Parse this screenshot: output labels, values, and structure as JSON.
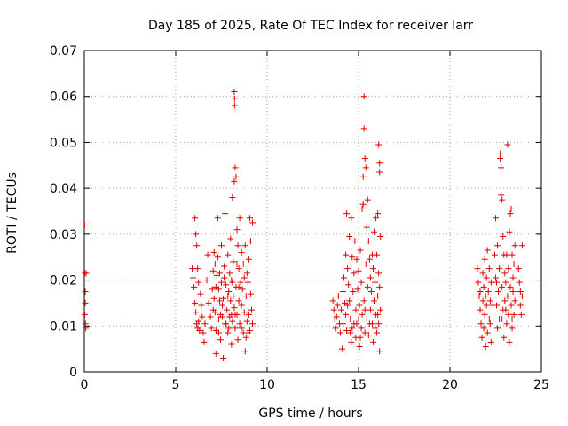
{
  "chart_data": {
    "type": "scatter",
    "title": "Day 185 of 2025, Rate Of TEC Index for receiver larr",
    "xlabel": "GPS time / hours",
    "ylabel": "ROTI / TECUs",
    "xlim": [
      0,
      25
    ],
    "ylim": [
      0,
      0.07
    ],
    "xticks": [
      0,
      5,
      10,
      15,
      20,
      25
    ],
    "xtick_labels": [
      "0",
      "5",
      "10",
      "15",
      "20",
      "25"
    ],
    "yticks": [
      0,
      0.01,
      0.02,
      0.03,
      0.04,
      0.05,
      0.06,
      0.07
    ],
    "ytick_labels": [
      "0",
      "0.01",
      "0.02",
      "0.03",
      "0.04",
      "0.05",
      "0.06",
      "0.07"
    ],
    "grid": true,
    "marker": "+",
    "marker_color": "#e00000",
    "series": [
      {
        "points": [
          [
            0.02,
            0.032
          ],
          [
            0.03,
            0.0215
          ],
          [
            0.05,
            0.0175
          ],
          [
            0.05,
            0.015
          ],
          [
            0.06,
            0.0105
          ],
          [
            0.08,
            0.0095
          ],
          [
            0.1,
            0.0215
          ],
          [
            0.03,
            0.0125
          ],
          [
            5.9,
            0.0225
          ],
          [
            5.95,
            0.0205
          ],
          [
            6.0,
            0.0185
          ],
          [
            6.05,
            0.015
          ],
          [
            6.1,
            0.013
          ],
          [
            6.15,
            0.0105
          ],
          [
            6.2,
            0.0095
          ],
          [
            6.25,
            0.011
          ],
          [
            6.3,
            0.009
          ],
          [
            6.05,
            0.0335
          ],
          [
            6.1,
            0.03
          ],
          [
            6.15,
            0.0275
          ],
          [
            6.2,
            0.0225
          ],
          [
            6.25,
            0.0195
          ],
          [
            6.35,
            0.017
          ],
          [
            6.4,
            0.0145
          ],
          [
            6.45,
            0.012
          ],
          [
            6.5,
            0.0085
          ],
          [
            6.55,
            0.0065
          ],
          [
            6.6,
            0.0105
          ],
          [
            6.7,
            0.02
          ],
          [
            6.75,
            0.0255
          ],
          [
            6.8,
            0.015
          ],
          [
            6.9,
            0.012
          ],
          [
            6.95,
            0.0095
          ],
          [
            7.0,
            0.018
          ],
          [
            7.05,
            0.022
          ],
          [
            7.1,
            0.026
          ],
          [
            7.1,
            0.016
          ],
          [
            7.15,
            0.013
          ],
          [
            7.2,
            0.009
          ],
          [
            7.2,
            0.004
          ],
          [
            7.25,
            0.021
          ],
          [
            7.3,
            0.025
          ],
          [
            7.3,
            0.0335
          ],
          [
            7.35,
            0.018
          ],
          [
            7.35,
            0.0115
          ],
          [
            7.4,
            0.0155
          ],
          [
            7.45,
            0.007
          ],
          [
            7.5,
            0.0275
          ],
          [
            7.5,
            0.0195
          ],
          [
            7.55,
            0.012
          ],
          [
            7.6,
            0.003
          ],
          [
            7.6,
            0.016
          ],
          [
            7.65,
            0.023
          ],
          [
            7.7,
            0.0345
          ],
          [
            7.7,
            0.0105
          ],
          [
            7.75,
            0.019
          ],
          [
            7.8,
            0.0135
          ],
          [
            7.85,
            0.0255
          ],
          [
            7.85,
            0.0085
          ],
          [
            7.9,
            0.0175
          ],
          [
            7.95,
            0.0215
          ],
          [
            7.95,
            0.012
          ],
          [
            8.0,
            0.029
          ],
          [
            8.0,
            0.0155
          ],
          [
            8.05,
            0.006
          ],
          [
            8.05,
            0.02
          ],
          [
            8.1,
            0.038
          ],
          [
            8.1,
            0.011
          ],
          [
            8.15,
            0.024
          ],
          [
            8.15,
            0.0165
          ],
          [
            8.2,
            0.0415
          ],
          [
            8.2,
            0.014
          ],
          [
            8.2,
            0.061
          ],
          [
            8.22,
            0.0595
          ],
          [
            8.22,
            0.058
          ],
          [
            8.25,
            0.0445
          ],
          [
            8.25,
            0.0095
          ],
          [
            8.3,
            0.0425
          ],
          [
            8.3,
            0.0185
          ],
          [
            8.35,
            0.031
          ],
          [
            8.35,
            0.0125
          ],
          [
            8.4,
            0.0275
          ],
          [
            8.4,
            0.007
          ],
          [
            8.45,
            0.0225
          ],
          [
            8.45,
            0.0155
          ],
          [
            8.5,
            0.0335
          ],
          [
            8.5,
            0.0105
          ],
          [
            8.55,
            0.0195
          ],
          [
            8.6,
            0.026
          ],
          [
            8.6,
            0.0145
          ],
          [
            8.65,
            0.018
          ],
          [
            8.7,
            0.0085
          ],
          [
            8.7,
            0.0235
          ],
          [
            8.75,
            0.013
          ],
          [
            8.8,
            0.0275
          ],
          [
            8.8,
            0.0045
          ],
          [
            8.85,
            0.0165
          ],
          [
            8.9,
            0.011
          ],
          [
            8.9,
            0.0215
          ],
          [
            8.95,
            0.0195
          ],
          [
            9.0,
            0.0245
          ],
          [
            9.0,
            0.0125
          ],
          [
            9.05,
            0.0335
          ],
          [
            9.05,
            0.009
          ],
          [
            9.1,
            0.017
          ],
          [
            9.1,
            0.0285
          ],
          [
            9.15,
            0.0135
          ],
          [
            9.2,
            0.0105
          ],
          [
            9.2,
            0.0325
          ],
          [
            7.05,
            0.0135
          ],
          [
            7.2,
            0.0185
          ],
          [
            7.4,
            0.0215
          ],
          [
            7.55,
            0.0145
          ],
          [
            7.75,
            0.0105
          ],
          [
            7.9,
            0.0095
          ],
          [
            8.1,
            0.0195
          ],
          [
            8.25,
            0.0125
          ],
          [
            8.45,
            0.0185
          ],
          [
            8.6,
            0.0095
          ],
          [
            8.75,
            0.0205
          ],
          [
            8.95,
            0.0085
          ],
          [
            7.15,
            0.0235
          ],
          [
            7.35,
            0.0085
          ],
          [
            7.65,
            0.0205
          ],
          [
            8.35,
            0.0235
          ],
          [
            8.85,
            0.0075
          ],
          [
            7.45,
            0.0125
          ],
          [
            7.85,
            0.0165
          ],
          [
            8.05,
            0.0125
          ],
          [
            13.6,
            0.0155
          ],
          [
            13.65,
            0.0135
          ],
          [
            13.7,
            0.0115
          ],
          [
            13.75,
            0.0095
          ],
          [
            13.8,
            0.012
          ],
          [
            13.85,
            0.0145
          ],
          [
            13.9,
            0.0165
          ],
          [
            13.95,
            0.0105
          ],
          [
            14.0,
            0.0085
          ],
          [
            14.05,
            0.0135
          ],
          [
            14.1,
            0.005
          ],
          [
            14.15,
            0.0175
          ],
          [
            14.2,
            0.0205
          ],
          [
            14.25,
            0.015
          ],
          [
            14.3,
            0.0255
          ],
          [
            14.3,
            0.0125
          ],
          [
            14.35,
            0.0345
          ],
          [
            14.35,
            0.009
          ],
          [
            14.4,
            0.0225
          ],
          [
            14.45,
            0.019
          ],
          [
            14.5,
            0.0295
          ],
          [
            14.5,
            0.0155
          ],
          [
            14.55,
            0.0115
          ],
          [
            14.6,
            0.0335
          ],
          [
            14.6,
            0.0065
          ],
          [
            14.65,
            0.025
          ],
          [
            14.7,
            0.0175
          ],
          [
            14.75,
            0.0215
          ],
          [
            14.75,
            0.0105
          ],
          [
            14.8,
            0.0285
          ],
          [
            14.85,
            0.0135
          ],
          [
            14.85,
            0.0075
          ],
          [
            14.9,
            0.0245
          ],
          [
            14.95,
            0.018
          ],
          [
            15.0,
            0.022
          ],
          [
            15.0,
            0.0115
          ],
          [
            15.05,
            0.0055
          ],
          [
            15.05,
            0.0145
          ],
          [
            15.1,
            0.0265
          ],
          [
            15.15,
            0.0195
          ],
          [
            15.15,
            0.0095
          ],
          [
            15.2,
            0.0355
          ],
          [
            15.2,
            0.0125
          ],
          [
            15.25,
            0.0365
          ],
          [
            15.25,
            0.0425
          ],
          [
            15.3,
            0.053
          ],
          [
            15.3,
            0.0155
          ],
          [
            15.35,
            0.0465
          ],
          [
            15.35,
            0.0085
          ],
          [
            15.3,
            0.06
          ],
          [
            15.4,
            0.0445
          ],
          [
            15.4,
            0.0235
          ],
          [
            15.45,
            0.0315
          ],
          [
            15.45,
            0.0115
          ],
          [
            15.5,
            0.0375
          ],
          [
            15.5,
            0.0185
          ],
          [
            15.55,
            0.0285
          ],
          [
            15.55,
            0.008
          ],
          [
            15.6,
            0.0245
          ],
          [
            15.65,
            0.0205
          ],
          [
            15.65,
            0.0135
          ],
          [
            15.7,
            0.0175
          ],
          [
            15.75,
            0.0255
          ],
          [
            15.75,
            0.0105
          ],
          [
            15.8,
            0.0225
          ],
          [
            15.8,
            0.0065
          ],
          [
            15.85,
            0.0305
          ],
          [
            15.85,
            0.0155
          ],
          [
            15.9,
            0.0195
          ],
          [
            15.95,
            0.0335
          ],
          [
            15.95,
            0.0125
          ],
          [
            16.0,
            0.0255
          ],
          [
            16.0,
            0.0085
          ],
          [
            16.05,
            0.0345
          ],
          [
            16.05,
            0.0165
          ],
          [
            16.1,
            0.0215
          ],
          [
            16.1,
            0.0105
          ],
          [
            16.15,
            0.0185
          ],
          [
            16.15,
            0.0045
          ],
          [
            16.1,
            0.0495
          ],
          [
            16.15,
            0.0455
          ],
          [
            16.15,
            0.0435
          ],
          [
            16.2,
            0.0295
          ],
          [
            16.2,
            0.0135
          ],
          [
            14.15,
            0.0105
          ],
          [
            14.4,
            0.0145
          ],
          [
            14.65,
            0.0095
          ],
          [
            14.9,
            0.0105
          ],
          [
            15.1,
            0.0075
          ],
          [
            15.35,
            0.0135
          ],
          [
            15.6,
            0.0105
          ],
          [
            15.9,
            0.0095
          ],
          [
            16.05,
            0.0125
          ],
          [
            14.55,
            0.0085
          ],
          [
            21.5,
            0.0225
          ],
          [
            21.55,
            0.0195
          ],
          [
            21.6,
            0.0165
          ],
          [
            21.65,
            0.0135
          ],
          [
            21.7,
            0.0105
          ],
          [
            21.75,
            0.0075
          ],
          [
            21.8,
            0.0215
          ],
          [
            21.8,
            0.0155
          ],
          [
            21.85,
            0.0185
          ],
          [
            21.85,
            0.0095
          ],
          [
            21.9,
            0.0245
          ],
          [
            21.9,
            0.0125
          ],
          [
            21.95,
            0.0055
          ],
          [
            22.0,
            0.0205
          ],
          [
            22.0,
            0.0145
          ],
          [
            22.05,
            0.0265
          ],
          [
            22.05,
            0.0085
          ],
          [
            22.1,
            0.0175
          ],
          [
            22.15,
            0.0115
          ],
          [
            22.15,
            0.0225
          ],
          [
            22.2,
            0.0155
          ],
          [
            22.25,
            0.0195
          ],
          [
            22.25,
            0.0065
          ],
          [
            22.45,
            0.0255
          ],
          [
            22.5,
            0.0335
          ],
          [
            22.5,
            0.0205
          ],
          [
            22.55,
            0.0145
          ],
          [
            22.6,
            0.0095
          ],
          [
            22.6,
            0.0275
          ],
          [
            22.65,
            0.0175
          ],
          [
            22.7,
            0.0225
          ],
          [
            22.7,
            0.0115
          ],
          [
            22.75,
            0.0465
          ],
          [
            22.75,
            0.0475
          ],
          [
            22.8,
            0.0445
          ],
          [
            22.8,
            0.0385
          ],
          [
            22.85,
            0.0375
          ],
          [
            22.85,
            0.0185
          ],
          [
            22.9,
            0.0295
          ],
          [
            22.9,
            0.0135
          ],
          [
            22.95,
            0.0255
          ],
          [
            22.95,
            0.0075
          ],
          [
            23.0,
            0.0215
          ],
          [
            23.0,
            0.0155
          ],
          [
            23.05,
            0.0195
          ],
          [
            23.1,
            0.0255
          ],
          [
            23.1,
            0.0105
          ],
          [
            23.15,
            0.0495
          ],
          [
            23.15,
            0.0165
          ],
          [
            23.2,
            0.0225
          ],
          [
            23.2,
            0.0125
          ],
          [
            23.25,
            0.0305
          ],
          [
            23.25,
            0.0065
          ],
          [
            23.3,
            0.0345
          ],
          [
            23.3,
            0.0185
          ],
          [
            23.35,
            0.0355
          ],
          [
            23.35,
            0.0145
          ],
          [
            23.4,
            0.0255
          ],
          [
            23.4,
            0.0095
          ],
          [
            23.45,
            0.0205
          ],
          [
            23.45,
            0.0175
          ],
          [
            23.5,
            0.0235
          ],
          [
            23.5,
            0.0125
          ],
          [
            23.55,
            0.0275
          ],
          [
            23.55,
            0.0155
          ],
          [
            23.75,
            0.0225
          ],
          [
            23.8,
            0.0195
          ],
          [
            23.85,
            0.0145
          ],
          [
            23.85,
            0.0175
          ],
          [
            23.9,
            0.0125
          ],
          [
            23.95,
            0.0275
          ],
          [
            23.95,
            0.0165
          ],
          [
            21.65,
            0.0175
          ],
          [
            21.95,
            0.0165
          ],
          [
            22.2,
            0.0105
          ],
          [
            22.55,
            0.0195
          ],
          [
            22.85,
            0.0115
          ],
          [
            23.05,
            0.0135
          ],
          [
            23.4,
            0.0115
          ],
          [
            22.35,
            0.0145
          ]
        ]
      }
    ]
  }
}
